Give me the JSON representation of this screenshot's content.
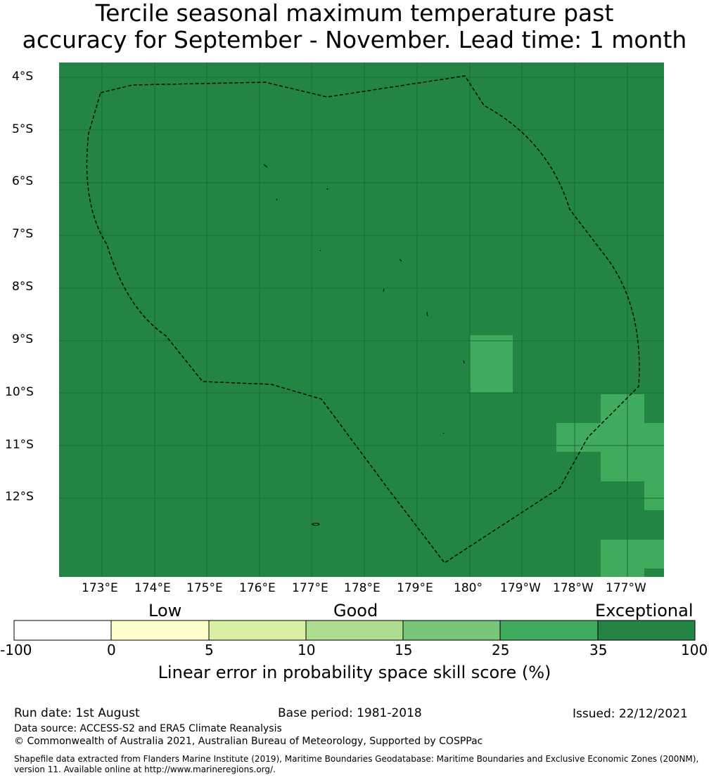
{
  "title_line1": "Tercile seasonal maximum temperature past",
  "title_line2": "accuracy for September - November. Lead time: 1 month",
  "map": {
    "lat_labels": [
      "4°S",
      "5°S",
      "6°S",
      "7°S",
      "8°S",
      "9°S",
      "10°S",
      "11°S",
      "12°S"
    ],
    "lon_labels": [
      "173°E",
      "174°E",
      "175°E",
      "176°E",
      "177°E",
      "178°E",
      "179°E",
      "180°",
      "179°W",
      "178°W",
      "177°W"
    ],
    "background_color": "#238443",
    "highlight_color": "#41ab5d",
    "grid": true,
    "eez_boundary": "dashed"
  },
  "colorbar": {
    "categories": [
      "Low",
      "Good",
      "Exceptional"
    ],
    "ticks": [
      "-100",
      "0",
      "5",
      "10",
      "15",
      "25",
      "35",
      "100"
    ],
    "colors": [
      "#ffffff",
      "#ffffcc",
      "#d9f0a3",
      "#addd8e",
      "#78c679",
      "#41ab5d",
      "#238443"
    ],
    "title": "Linear error in probability space skill score (%)"
  },
  "footer": {
    "run_date": "Run date: 1st August",
    "base_period": "Base period: 1981-2018",
    "issued": "Issued: 22/12/2021",
    "data_source": "Data source: ACCESS-S2 and ERA5 Climate Reanalysis",
    "copyright": "© Commonwealth of Australia 2021, Australian Bureau of Meteorology, Supported by COSPPac",
    "shapefile_line1": "Shapefile data extracted from Flanders Marine Institute (2019), Maritime Boundaries Geodatabase: Maritime Boundaries and Exclusive Economic Zones (200NM),",
    "shapefile_line2": "version 11. Available online at http://www.marineregions.org/."
  }
}
